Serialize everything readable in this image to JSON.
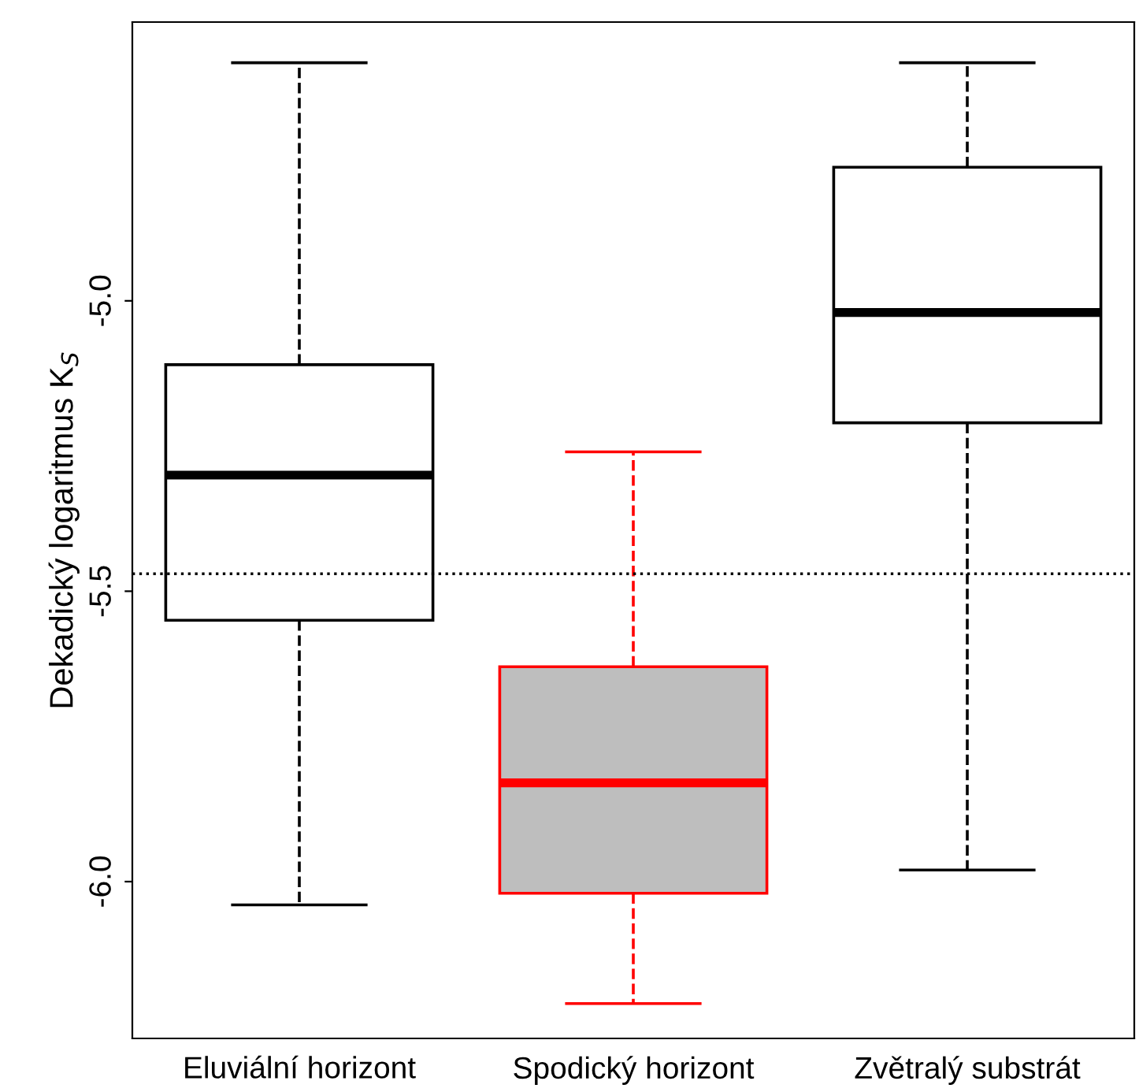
{
  "chart_data": {
    "type": "box",
    "ylabel": "Dekadický logaritmus K$_{S}$",
    "categories": [
      "Eluviální horizont",
      "Spodický horizont",
      "Zvětralý substrát"
    ],
    "colors": [
      "#ffffff",
      "#bebebe",
      "#ffffff"
    ],
    "series": [
      {
        "color": "#000000",
        "boxes": [
          {
            "low": -6.04,
            "q1": -5.55,
            "median": -5.3,
            "q3": -5.11,
            "high": -4.59
          },
          null,
          {
            "low": -5.98,
            "q1": -5.21,
            "median": -5.02,
            "q3": -4.77,
            "high": -4.59
          }
        ]
      },
      {
        "color": "#ff0000",
        "boxes": [
          null,
          {
            "low": -6.21,
            "q1": -6.02,
            "median": -5.83,
            "q3": -5.63,
            "high": -5.26
          },
          null
        ]
      }
    ],
    "ylim": [
      -6.27,
      -4.52
    ],
    "yticks": [
      {
        "value": -6.0,
        "label": "-6.0"
      },
      {
        "value": -5.5,
        "label": "-5.5"
      },
      {
        "value": -5.0,
        "label": "-5.0"
      }
    ],
    "ref_lines": [
      {
        "axis": "y",
        "value": -5.47,
        "color": "#000000",
        "line_style": "dotted"
      }
    ],
    "grid": false,
    "legend": false
  }
}
